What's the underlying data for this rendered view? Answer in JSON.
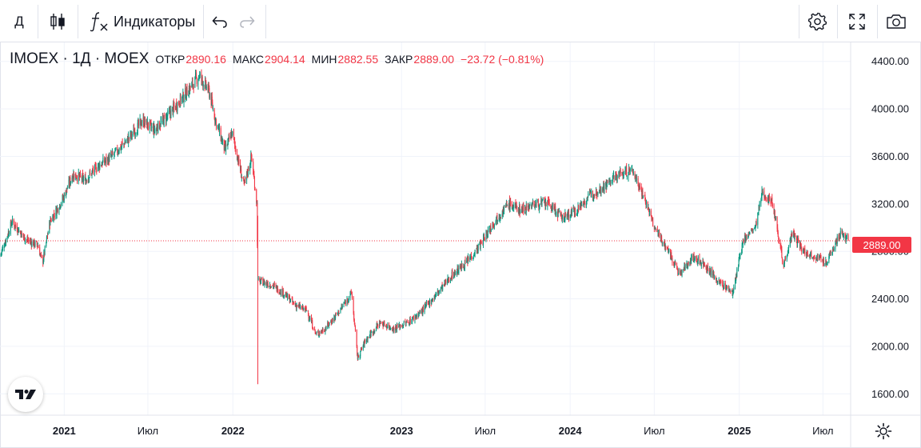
{
  "toolbar": {
    "period_label": "Д",
    "indicators_label": "Индикаторы",
    "icons": [
      "candles-icon",
      "fx-icon",
      "undo-icon",
      "redo-icon",
      "gear-icon",
      "fullscreen-icon",
      "camera-icon"
    ]
  },
  "legend": {
    "symbol": "IMOEX · 1Д · MOEX",
    "open_label": "ОТКР",
    "open": "2890.16",
    "high_label": "МАКС",
    "high": "2904.14",
    "low_label": "МИН",
    "low": "2882.55",
    "close_label": "ЗАКР",
    "close": "2889.00",
    "change": "−23.72 (−0.81%)"
  },
  "last_price_badge": "2889.00",
  "colors": {
    "up": "#089981",
    "down": "#f23645",
    "grid": "#f0f3fa",
    "text": "#131722"
  },
  "chart_data": {
    "type": "candlestick",
    "title": "IMOEX · 1Д · MOEX",
    "y_ticks": [
      1600,
      2000,
      2400,
      2800,
      3200,
      3600,
      4000,
      4400
    ],
    "y_tick_labels": [
      "1600.00",
      "2000.00",
      "2400.00",
      "2800.00",
      "3200.00",
      "3600.00",
      "4000.00",
      "4400.00"
    ],
    "ylim": [
      1420,
      4560
    ],
    "x_ticks": [
      {
        "label": "2021",
        "date": "2021-01-01",
        "bold": true
      },
      {
        "label": "Июл",
        "date": "2021-07-01",
        "bold": false
      },
      {
        "label": "2022",
        "date": "2022-01-01",
        "bold": true
      },
      {
        "label": "2023",
        "date": "2023-01-01",
        "bold": true
      },
      {
        "label": "Июл",
        "date": "2023-07-01",
        "bold": false
      },
      {
        "label": "2024",
        "date": "2024-01-01",
        "bold": true
      },
      {
        "label": "Июл",
        "date": "2024-07-01",
        "bold": false
      },
      {
        "label": "2025",
        "date": "2025-01-01",
        "bold": true
      },
      {
        "label": "Июл",
        "date": "2025-07-01",
        "bold": false
      }
    ],
    "xlim": [
      "2020-08-15",
      "2025-08-30"
    ],
    "last_close": 2889.0,
    "series_points": [
      [
        "2020-08-15",
        2760
      ],
      [
        "2020-09-10",
        3050
      ],
      [
        "2020-10-10",
        2900
      ],
      [
        "2020-11-05",
        2850
      ],
      [
        "2020-11-15",
        2700
      ],
      [
        "2020-12-01",
        3050
      ],
      [
        "2020-12-30",
        3250
      ],
      [
        "2021-01-20",
        3450
      ],
      [
        "2021-02-15",
        3400
      ],
      [
        "2021-03-15",
        3520
      ],
      [
        "2021-04-15",
        3600
      ],
      [
        "2021-05-20",
        3750
      ],
      [
        "2021-06-20",
        3900
      ],
      [
        "2021-07-15",
        3820
      ],
      [
        "2021-08-15",
        3950
      ],
      [
        "2021-09-15",
        4100
      ],
      [
        "2021-10-20",
        4280
      ],
      [
        "2021-11-10",
        4150
      ],
      [
        "2021-11-25",
        3900
      ],
      [
        "2021-12-15",
        3650
      ],
      [
        "2021-12-30",
        3800
      ],
      [
        "2022-01-25",
        3350
      ],
      [
        "2022-02-10",
        3600
      ],
      [
        "2022-02-22",
        3200
      ],
      [
        "2022-02-24",
        2550
      ],
      [
        "2022-03-25",
        2520
      ],
      [
        "2022-04-20",
        2450
      ],
      [
        "2022-05-15",
        2350
      ],
      [
        "2022-06-10",
        2300
      ],
      [
        "2022-06-30",
        2100
      ],
      [
        "2022-07-20",
        2150
      ],
      [
        "2022-08-20",
        2300
      ],
      [
        "2022-09-15",
        2450
      ],
      [
        "2022-09-28",
        1900
      ],
      [
        "2022-10-15",
        2050
      ],
      [
        "2022-11-15",
        2200
      ],
      [
        "2022-12-15",
        2150
      ],
      [
        "2023-01-15",
        2200
      ],
      [
        "2023-02-15",
        2300
      ],
      [
        "2023-03-20",
        2450
      ],
      [
        "2023-04-20",
        2600
      ],
      [
        "2023-05-20",
        2700
      ],
      [
        "2023-06-20",
        2850
      ],
      [
        "2023-07-20",
        3050
      ],
      [
        "2023-08-20",
        3200
      ],
      [
        "2023-09-15",
        3150
      ],
      [
        "2023-10-15",
        3200
      ],
      [
        "2023-11-15",
        3200
      ],
      [
        "2023-12-15",
        3080
      ],
      [
        "2024-01-15",
        3150
      ],
      [
        "2024-02-15",
        3280
      ],
      [
        "2024-03-15",
        3350
      ],
      [
        "2024-04-15",
        3450
      ],
      [
        "2024-05-15",
        3480
      ],
      [
        "2024-06-10",
        3250
      ],
      [
        "2024-07-01",
        3000
      ],
      [
        "2024-08-01",
        2800
      ],
      [
        "2024-08-25",
        2600
      ],
      [
        "2024-09-20",
        2750
      ],
      [
        "2024-10-15",
        2700
      ],
      [
        "2024-11-15",
        2550
      ],
      [
        "2024-12-18",
        2450
      ],
      [
        "2025-01-10",
        2900
      ],
      [
        "2025-02-05",
        3000
      ],
      [
        "2025-02-20",
        3300
      ],
      [
        "2025-03-15",
        3200
      ],
      [
        "2025-04-07",
        2680
      ],
      [
        "2025-04-25",
        2950
      ],
      [
        "2025-05-20",
        2800
      ],
      [
        "2025-06-20",
        2750
      ],
      [
        "2025-07-10",
        2700
      ],
      [
        "2025-07-25",
        2850
      ],
      [
        "2025-08-10",
        2960
      ],
      [
        "2025-08-25",
        2889
      ]
    ]
  }
}
